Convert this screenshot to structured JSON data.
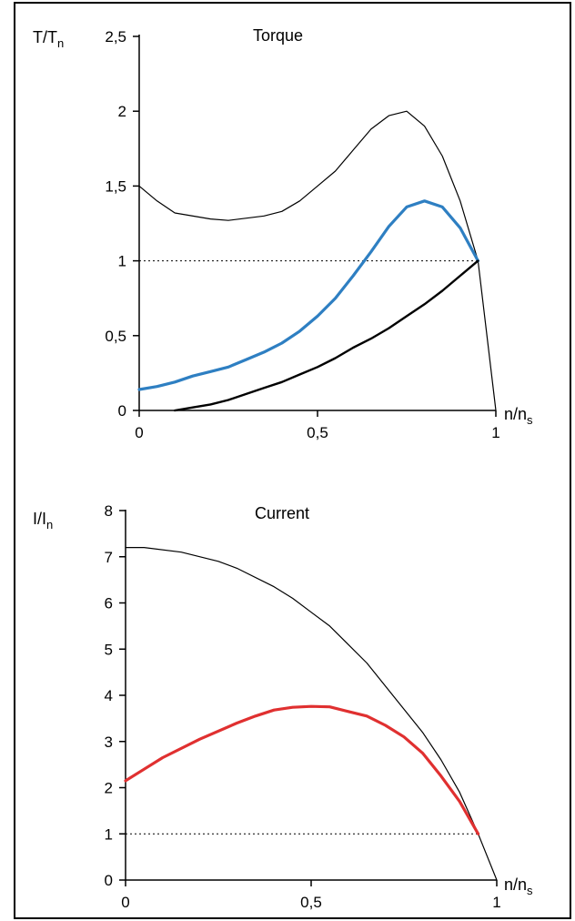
{
  "chart_data": [
    {
      "type": "line",
      "title": "Torque",
      "ylabel_main": "T/T",
      "ylabel_sub": "n",
      "xlabel_main": "n/n",
      "xlabel_sub": "s",
      "xlim": [
        0,
        1
      ],
      "ylim": [
        0,
        2.5
      ],
      "xticks": [
        0,
        0.5,
        1
      ],
      "xtick_labels": [
        "0",
        "0,5",
        "1"
      ],
      "yticks": [
        0,
        0.5,
        1,
        1.5,
        2,
        2.5
      ],
      "ytick_labels": [
        "0",
        "0,5",
        "1",
        "1,5",
        "2",
        "2,5"
      ],
      "reference_line": {
        "y": 1,
        "style": "dotted"
      },
      "series": [
        {
          "color": "#000000",
          "width": 1.2,
          "points": [
            [
              0,
              1.5
            ],
            [
              0.05,
              1.4
            ],
            [
              0.1,
              1.32
            ],
            [
              0.2,
              1.28
            ],
            [
              0.25,
              1.27
            ],
            [
              0.35,
              1.3
            ],
            [
              0.4,
              1.33
            ],
            [
              0.45,
              1.4
            ],
            [
              0.5,
              1.5
            ],
            [
              0.55,
              1.6
            ],
            [
              0.6,
              1.74
            ],
            [
              0.65,
              1.88
            ],
            [
              0.7,
              1.97
            ],
            [
              0.75,
              2.0
            ],
            [
              0.8,
              1.9
            ],
            [
              0.85,
              1.7
            ],
            [
              0.9,
              1.4
            ],
            [
              0.95,
              1.0
            ],
            [
              1.0,
              0.0
            ]
          ]
        },
        {
          "color": "#2e7fc2",
          "width": 3.2,
          "points": [
            [
              0,
              0.14
            ],
            [
              0.05,
              0.16
            ],
            [
              0.1,
              0.19
            ],
            [
              0.15,
              0.23
            ],
            [
              0.2,
              0.26
            ],
            [
              0.25,
              0.29
            ],
            [
              0.3,
              0.34
            ],
            [
              0.35,
              0.39
            ],
            [
              0.4,
              0.45
            ],
            [
              0.45,
              0.53
            ],
            [
              0.5,
              0.63
            ],
            [
              0.55,
              0.75
            ],
            [
              0.6,
              0.9
            ],
            [
              0.65,
              1.06
            ],
            [
              0.7,
              1.23
            ],
            [
              0.75,
              1.36
            ],
            [
              0.8,
              1.4
            ],
            [
              0.85,
              1.36
            ],
            [
              0.9,
              1.22
            ],
            [
              0.95,
              1.0
            ]
          ]
        },
        {
          "color": "#000000",
          "width": 2.4,
          "points": [
            [
              0.1,
              0.0
            ],
            [
              0.15,
              0.02
            ],
            [
              0.2,
              0.04
            ],
            [
              0.25,
              0.07
            ],
            [
              0.3,
              0.11
            ],
            [
              0.35,
              0.15
            ],
            [
              0.4,
              0.19
            ],
            [
              0.45,
              0.24
            ],
            [
              0.5,
              0.29
            ],
            [
              0.55,
              0.35
            ],
            [
              0.6,
              0.42
            ],
            [
              0.65,
              0.48
            ],
            [
              0.7,
              0.55
            ],
            [
              0.75,
              0.63
            ],
            [
              0.8,
              0.71
            ],
            [
              0.85,
              0.8
            ],
            [
              0.9,
              0.9
            ],
            [
              0.95,
              1.0
            ]
          ]
        }
      ]
    },
    {
      "type": "line",
      "title": "Current",
      "ylabel_main": "I/I",
      "ylabel_sub": "n",
      "xlabel_main": "n/n",
      "xlabel_sub": "s",
      "xlim": [
        0,
        1
      ],
      "ylim": [
        0,
        8
      ],
      "xticks": [
        0,
        0.5,
        1
      ],
      "xtick_labels": [
        "0",
        "0,5",
        "1"
      ],
      "yticks": [
        0,
        1,
        2,
        3,
        4,
        5,
        6,
        7,
        8
      ],
      "ytick_labels": [
        "0",
        "1",
        "2",
        "3",
        "4",
        "5",
        "6",
        "7",
        "8"
      ],
      "reference_line": {
        "y": 1,
        "style": "dotted"
      },
      "series": [
        {
          "color": "#000000",
          "width": 1.2,
          "points": [
            [
              0,
              7.2
            ],
            [
              0.05,
              7.2
            ],
            [
              0.15,
              7.1
            ],
            [
              0.25,
              6.9
            ],
            [
              0.3,
              6.75
            ],
            [
              0.4,
              6.35
            ],
            [
              0.45,
              6.1
            ],
            [
              0.5,
              5.8
            ],
            [
              0.55,
              5.5
            ],
            [
              0.6,
              5.1
            ],
            [
              0.65,
              4.7
            ],
            [
              0.7,
              4.2
            ],
            [
              0.75,
              3.7
            ],
            [
              0.8,
              3.2
            ],
            [
              0.85,
              2.6
            ],
            [
              0.9,
              1.9
            ],
            [
              0.95,
              1.0
            ],
            [
              1.0,
              0.0
            ]
          ]
        },
        {
          "color": "#e03030",
          "width": 3.2,
          "points": [
            [
              0,
              2.15
            ],
            [
              0.05,
              2.4
            ],
            [
              0.1,
              2.65
            ],
            [
              0.2,
              3.05
            ],
            [
              0.3,
              3.4
            ],
            [
              0.35,
              3.55
            ],
            [
              0.4,
              3.68
            ],
            [
              0.45,
              3.74
            ],
            [
              0.5,
              3.76
            ],
            [
              0.55,
              3.75
            ],
            [
              0.6,
              3.65
            ],
            [
              0.65,
              3.55
            ],
            [
              0.7,
              3.35
            ],
            [
              0.75,
              3.1
            ],
            [
              0.8,
              2.75
            ],
            [
              0.85,
              2.25
            ],
            [
              0.9,
              1.7
            ],
            [
              0.95,
              1.0
            ]
          ]
        }
      ]
    }
  ]
}
